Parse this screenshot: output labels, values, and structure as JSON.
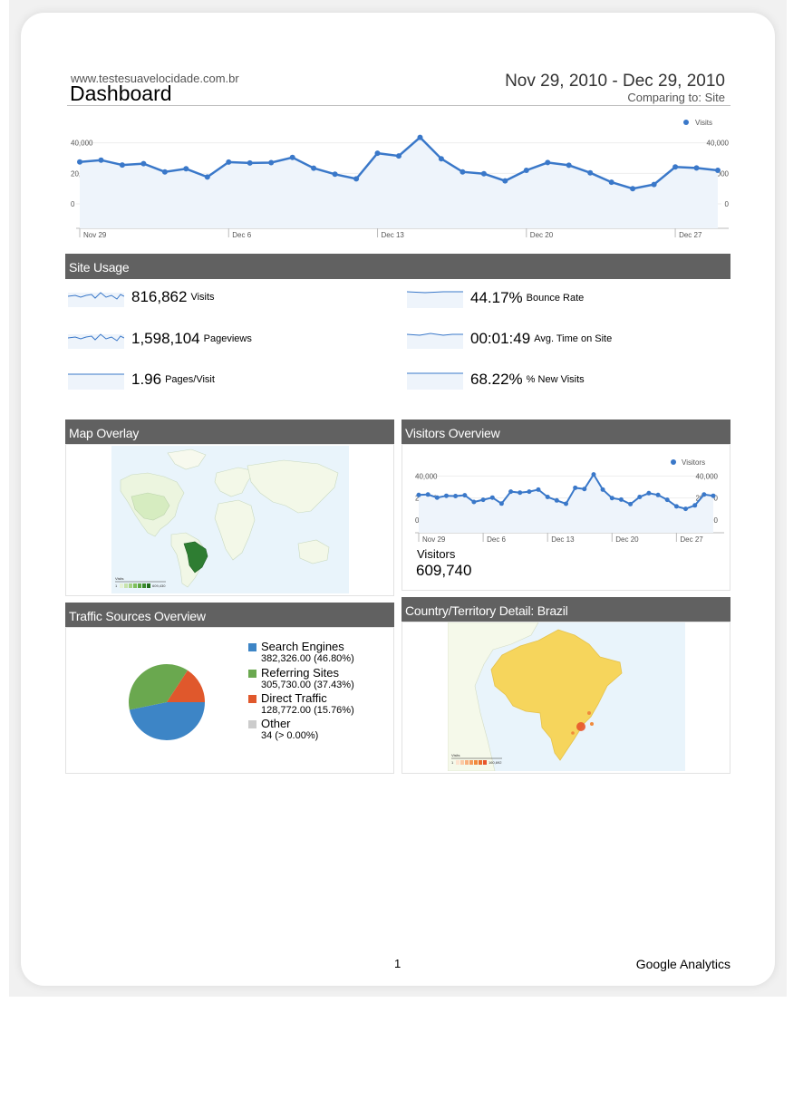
{
  "header": {
    "site_url": "www.testesuavelocidade.com.br",
    "title": "Dashboard",
    "date_range": "Nov 29, 2010 - Dec 29, 2010",
    "comparing": "Comparing to: Site"
  },
  "colors": {
    "line": "#3a78c9",
    "area": "#eef4fb",
    "panel_header": "#616161"
  },
  "chart_data": [
    {
      "type": "line",
      "series": [
        {
          "name": "Visits",
          "values": [
            27500,
            28700,
            25500,
            26400,
            21000,
            23000,
            17600,
            27400,
            26800,
            27000,
            30400,
            23400,
            19400,
            16400,
            33200,
            31400,
            43600,
            29600,
            21000,
            19800,
            15100,
            22000,
            27100,
            25300,
            20400,
            14200,
            10000,
            12700,
            24200,
            23500,
            22000
          ]
        }
      ],
      "x_tick_labels": [
        "Nov 29",
        "Dec 6",
        "Dec 13",
        "Dec 20",
        "Dec 27"
      ],
      "y_ticks": [
        "40,000",
        "20,000",
        "0"
      ],
      "ylim": [
        0,
        60000
      ],
      "legend": "top-right"
    },
    {
      "type": "line",
      "series": [
        {
          "name": "Visitors",
          "values": [
            22800,
            23200,
            20400,
            22000,
            21800,
            22500,
            16400,
            18400,
            20400,
            15000,
            25800,
            24900,
            25800,
            27600,
            21000,
            17800,
            14800,
            29300,
            28200,
            41400,
            27600,
            20000,
            18600,
            14500,
            21000,
            24400,
            22800,
            18400,
            12400,
            10200,
            13300,
            23200,
            22000
          ]
        }
      ],
      "x_tick_labels": [
        "Nov 29",
        "Dec 6",
        "Dec 13",
        "Dec 20",
        "Dec 27"
      ],
      "y_ticks": [
        "40,000",
        "20,000",
        "0"
      ],
      "ylim": [
        0,
        60000
      ],
      "legend": "top-right"
    },
    {
      "type": "pie",
      "series": [
        {
          "values": [
            46.8,
            37.43,
            15.76,
            0.004
          ]
        }
      ],
      "categories": [
        "Search Engines",
        "Referring Sites",
        "Direct Traffic",
        "Other"
      ]
    }
  ],
  "main_chart": {
    "legend_label": "Visits"
  },
  "site_usage": {
    "heading": "Site Usage",
    "metrics": [
      {
        "value": "816,862",
        "label": "Visits"
      },
      {
        "value": "1,598,104",
        "label": "Pageviews"
      },
      {
        "value": "1.96",
        "label": "Pages/Visit"
      },
      {
        "value": "44.17%",
        "label": "Bounce Rate"
      },
      {
        "value": "00:01:49",
        "label": "Avg. Time on Site"
      },
      {
        "value": "68.22%",
        "label": "% New Visits"
      }
    ]
  },
  "map_overlay": {
    "heading": "Map Overlay",
    "legend_title": "Visits",
    "legend_min": "1",
    "legend_max": "609,430"
  },
  "visitors_overview": {
    "heading": "Visitors Overview",
    "legend_label": "Visitors",
    "summary_label": "Visitors",
    "summary_value": "609,740"
  },
  "traffic_sources": {
    "heading": "Traffic Sources Overview",
    "items": [
      {
        "name": "Search Engines",
        "detail": "382,326.00 (46.80%)",
        "color": "#3d85c6"
      },
      {
        "name": "Referring Sites",
        "detail": "305,730.00 (37.43%)",
        "color": "#6aa84f"
      },
      {
        "name": "Direct Traffic",
        "detail": "128,772.00 (15.76%)",
        "color": "#e0582c"
      },
      {
        "name": "Other",
        "detail": "34 (> 0.00%)",
        "color": "#cccccc"
      }
    ]
  },
  "country_detail": {
    "heading": "Country/Territory Detail: Brazil",
    "legend_title": "Visits",
    "legend_min": "1",
    "legend_max": "160,692"
  },
  "footer": {
    "page": "1",
    "brand": "Google Analytics"
  }
}
